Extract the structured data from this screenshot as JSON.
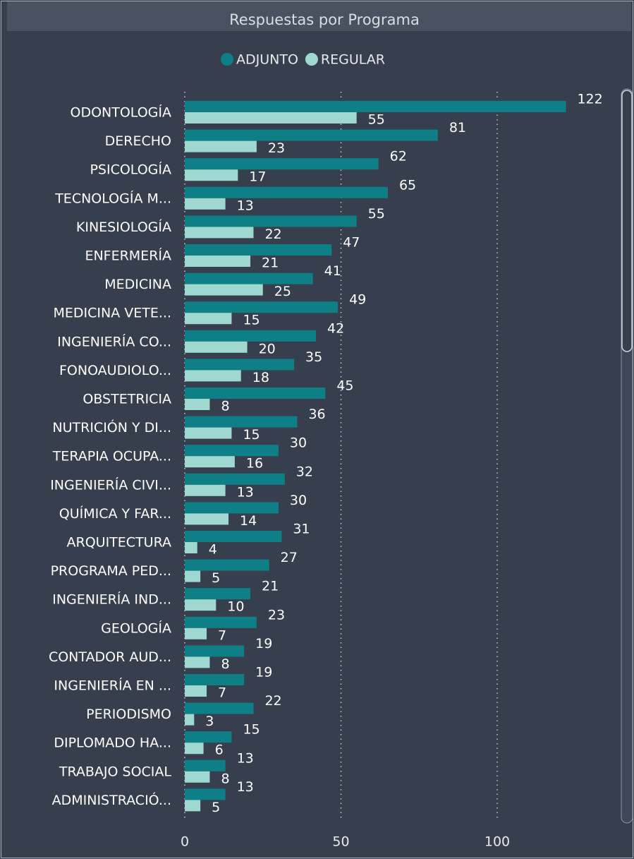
{
  "chart_data": {
    "type": "hbar",
    "title": "Respuestas por Programa",
    "categories": [
      "ODONTOLOGÍA",
      "DERECHO",
      "PSICOLOGÍA",
      "TECNOLOGÍA M...",
      "KINESIOLOGÍA",
      "ENFERMERÍA",
      "MEDICINA",
      "MEDICINA VETE...",
      "INGENIERÍA CO...",
      "FONOAUDIOLO...",
      "OBSTETRICIA",
      "NUTRICIÓN Y DI...",
      "TERAPIA OCUPA...",
      "INGENIERÍA CIVI...",
      "QUÍMICA Y FAR...",
      "ARQUITECTURA",
      "PROGRAMA PED...",
      "INGENIERÍA IND...",
      "GEOLOGÍA",
      "CONTADOR AUD...",
      "INGENIERÍA EN ...",
      "PERIODISMO",
      "DIPLOMADO HA...",
      "TRABAJO SOCIAL",
      "ADMINISTRACIÓ..."
    ],
    "series": [
      {
        "name": "ADJUNTO",
        "color": "#0e7f86",
        "values": [
          122,
          81,
          62,
          65,
          55,
          47,
          41,
          49,
          42,
          35,
          45,
          36,
          30,
          32,
          30,
          31,
          27,
          21,
          23,
          19,
          19,
          22,
          15,
          13,
          13
        ]
      },
      {
        "name": "REGULAR",
        "color": "#9ed8d1",
        "values": [
          55,
          23,
          17,
          13,
          22,
          21,
          25,
          15,
          20,
          18,
          8,
          15,
          16,
          13,
          14,
          4,
          5,
          10,
          7,
          8,
          7,
          3,
          6,
          8,
          5
        ]
      }
    ],
    "xlim": [
      0,
      135
    ],
    "xticks": [
      0,
      50,
      100
    ],
    "grid": true,
    "legend": "top"
  }
}
